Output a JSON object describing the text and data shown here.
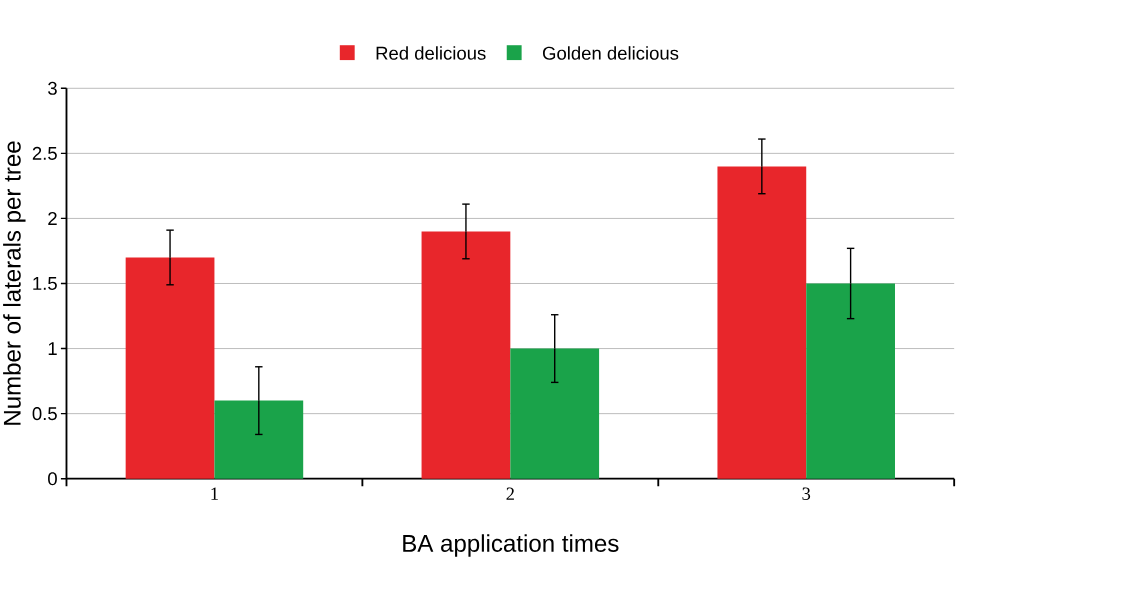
{
  "chart_data": {
    "type": "bar",
    "xlabel": "BA application times",
    "ylabel": "Number of laterals per tree",
    "categories": [
      "1",
      "2",
      "3"
    ],
    "series": [
      {
        "name": "Red delicious",
        "color": "#e8262b",
        "values": [
          1.7,
          1.9,
          2.4
        ],
        "errors": [
          0.21,
          0.21,
          0.21
        ]
      },
      {
        "name": "Golden delicious",
        "color": "#1aa34a",
        "values": [
          0.6,
          1.0,
          1.5
        ],
        "errors": [
          0.26,
          0.26,
          0.27
        ]
      }
    ],
    "ylim": [
      0,
      3
    ],
    "yticks": [
      0,
      0.5,
      1,
      1.5,
      2,
      2.5,
      3
    ],
    "grid": "y",
    "legend": "top"
  }
}
